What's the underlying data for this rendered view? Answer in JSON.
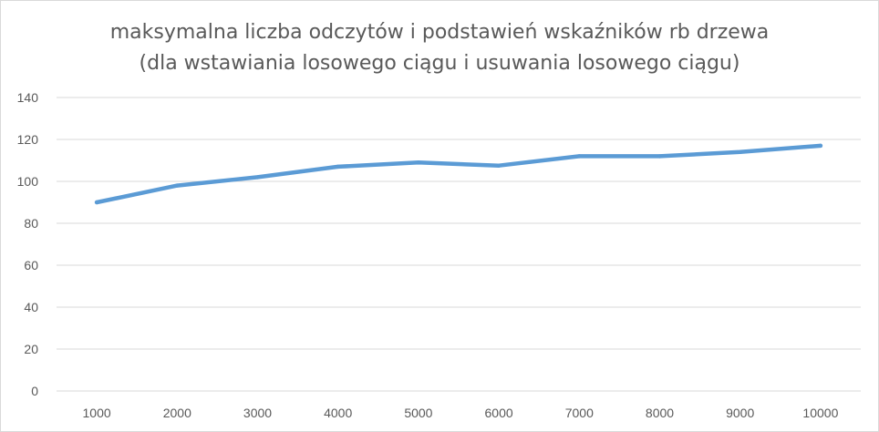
{
  "chart_data": {
    "type": "line",
    "title": "maksymalna liczba odczytów i podstawień wskaźników rb drzewa",
    "subtitle": "(dla wstawiania losowego ciągu i usuwania losowego ciągu)",
    "xlabel": "",
    "ylabel": "",
    "categories": [
      "1000",
      "2000",
      "3000",
      "4000",
      "5000",
      "6000",
      "7000",
      "8000",
      "9000",
      "10000"
    ],
    "series": [
      {
        "values": [
          90,
          98,
          102,
          107,
          109,
          107.5,
          112,
          112,
          114,
          117
        ]
      }
    ],
    "ylim": [
      0,
      140
    ],
    "yticks": [
      0,
      20,
      40,
      60,
      80,
      100,
      120,
      140
    ],
    "grid": true,
    "legend": "none",
    "colors": {
      "line": "#5b9bd5",
      "grid": "#d9d9d9",
      "text": "#595959"
    }
  }
}
